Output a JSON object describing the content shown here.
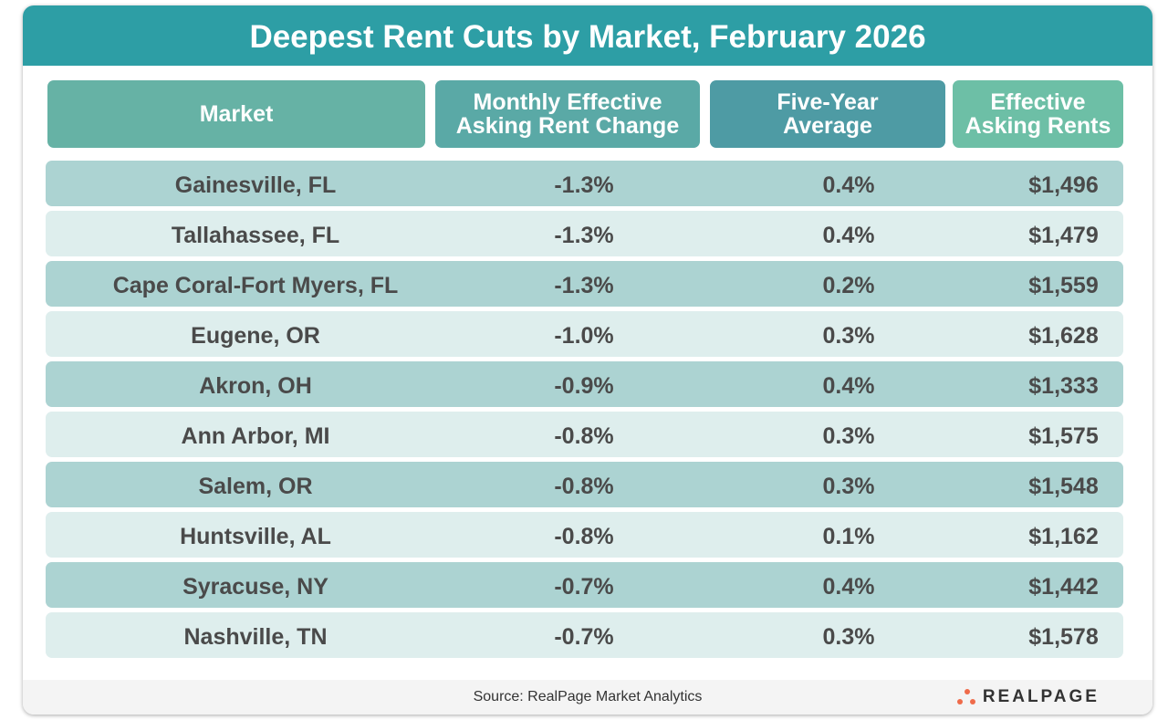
{
  "title": "Deepest Rent Cuts by Market, February 2026",
  "columns": [
    "Market",
    "Monthly Effective\nAsking Rent Change",
    "Five-Year\nAverage",
    "Effective\nAsking Rents"
  ],
  "header_colors": [
    "#66b2a5",
    "#5aa9a6",
    "#4e9ba4",
    "#6dbfa6"
  ],
  "row_colors": [
    "#acd3d2",
    "#deeeed"
  ],
  "rows": [
    [
      "Gainesville, FL",
      "-1.3%",
      "0.4%",
      "$1,496"
    ],
    [
      "Tallahassee, FL",
      "-1.3%",
      "0.4%",
      "$1,479"
    ],
    [
      "Cape Coral-Fort Myers, FL",
      "-1.3%",
      "0.2%",
      "$1,559"
    ],
    [
      "Eugene, OR",
      "-1.0%",
      "0.3%",
      "$1,628"
    ],
    [
      "Akron, OH",
      "-0.9%",
      "0.4%",
      "$1,333"
    ],
    [
      "Ann Arbor, MI",
      "-0.8%",
      "0.3%",
      "$1,575"
    ],
    [
      "Salem, OR",
      "-0.8%",
      "0.3%",
      "$1,548"
    ],
    [
      "Huntsville, AL",
      "-0.8%",
      "0.1%",
      "$1,162"
    ],
    [
      "Syracuse, NY",
      "-0.7%",
      "0.4%",
      "$1,442"
    ],
    [
      "Nashville, TN",
      "-0.7%",
      "0.3%",
      "$1,578"
    ]
  ],
  "footer": {
    "source": "Source:  RealPage Market Analytics",
    "logo": "REALPAGE"
  }
}
